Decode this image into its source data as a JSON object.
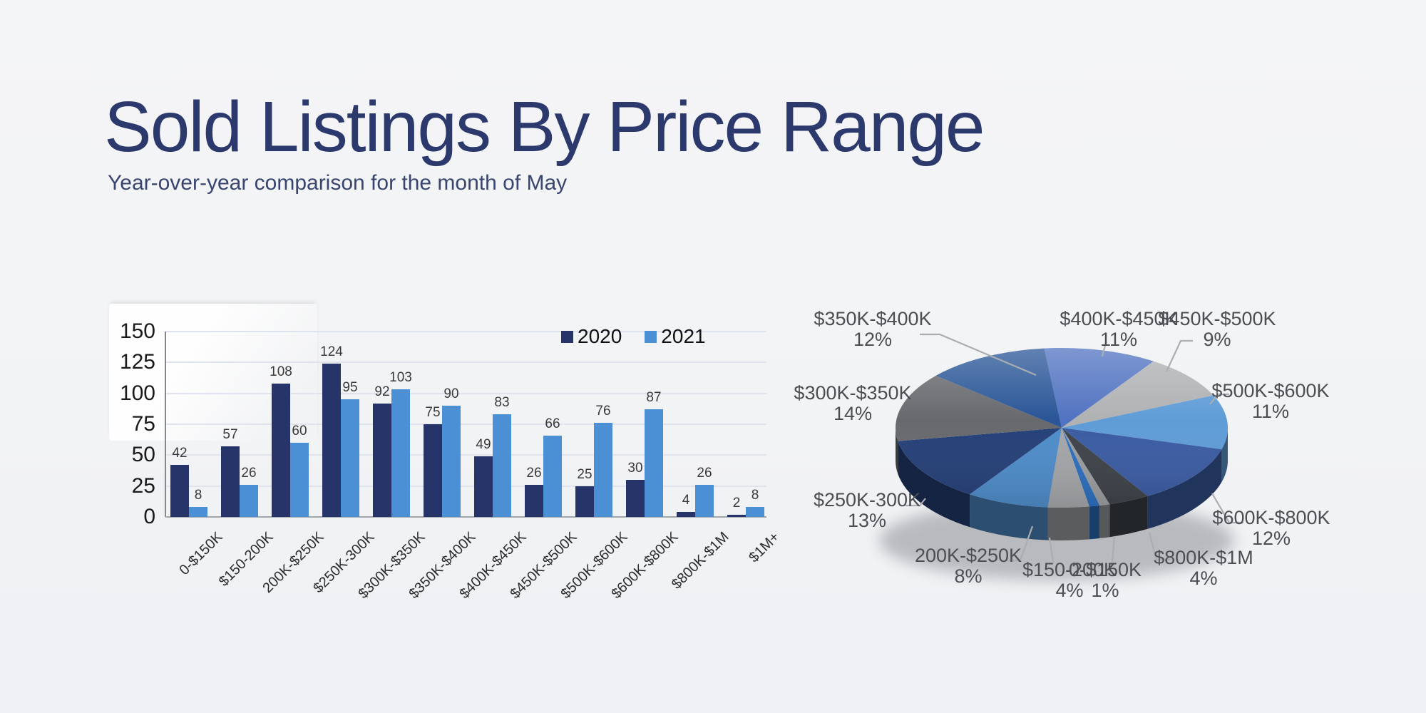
{
  "header": {
    "title": "Sold Listings By Price Range",
    "subtitle": "Year-over-year comparison for the month of May",
    "title_color": "#2c396d",
    "subtitle_color": "#39456f"
  },
  "chart_data": [
    {
      "type": "bar",
      "title": "",
      "categories": [
        "0-$150K",
        "$150-200K",
        "200K-$250K",
        "$250K-300K",
        "$300K-$350K",
        "$350K-$400K",
        "$400K-$450K",
        "$450K-$500K",
        "$500K-$600K",
        "$600K-$800K",
        "$800K-$1M",
        "$1M+"
      ],
      "series": [
        {
          "name": "2020",
          "color": "#273469",
          "values": [
            42,
            57,
            108,
            124,
            92,
            75,
            49,
            26,
            25,
            30,
            4,
            2
          ]
        },
        {
          "name": "2021",
          "color": "#4b90d4",
          "values": [
            8,
            26,
            60,
            95,
            103,
            90,
            83,
            66,
            76,
            87,
            26,
            8
          ]
        }
      ],
      "xlabel": "",
      "ylabel": "",
      "ylim": [
        0,
        150
      ],
      "yticks": [
        0,
        25,
        50,
        75,
        100,
        125,
        150
      ],
      "grid": true,
      "legend_position": "top-right",
      "value_labels": true
    },
    {
      "type": "pie",
      "title": "",
      "style": "3d",
      "direction": "clockwise",
      "start_angle_deg": -6,
      "slices": [
        {
          "label": "$400K-$450K",
          "pct": 11,
          "color": "#5173c1"
        },
        {
          "label": "$450K-$500K",
          "pct": 9,
          "color": "#b0b1b3"
        },
        {
          "label": "$500K-$600K",
          "pct": 11,
          "color": "#5f9cd6"
        },
        {
          "label": "$600K-$800K",
          "pct": 12,
          "color": "#3b5ca3"
        },
        {
          "label": "$800K-$1M",
          "pct": 4,
          "color": "#3e4349"
        },
        {
          "label": "$1M+",
          "pct": 1,
          "color": "#9b9da0",
          "unlabeled": true
        },
        {
          "label": "0-$150K",
          "pct": 1,
          "color": "#2e6fbe"
        },
        {
          "label": "$150-200K",
          "pct": 4,
          "color": "#a3a5a8"
        },
        {
          "label": "200K-$250K",
          "pct": 8,
          "color": "#4e8cc9"
        },
        {
          "label": "$250K-300K",
          "pct": 13,
          "color": "#254078"
        },
        {
          "label": "$300K-$350K",
          "pct": 14,
          "color": "#67696d"
        },
        {
          "label": "$350K-$400K",
          "pct": 12,
          "color": "#2a5697"
        }
      ]
    }
  ]
}
